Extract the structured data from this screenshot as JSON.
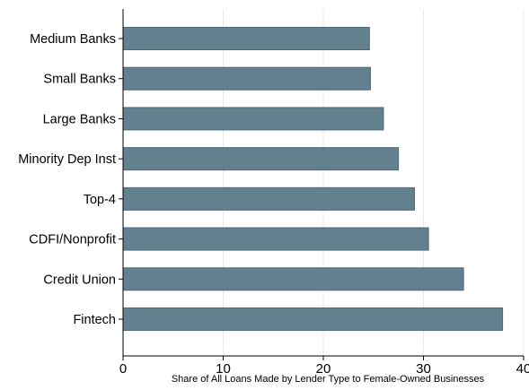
{
  "chart_data": {
    "type": "bar",
    "orientation": "horizontal",
    "categories": [
      "Medium Banks",
      "Small Banks",
      "Large Banks",
      "Minority Dep Inst",
      "Top-4",
      "CDFI/Nonprofit",
      "Credit Union",
      "Fintech"
    ],
    "values": [
      24.6,
      24.7,
      26.0,
      27.5,
      29.1,
      30.5,
      34.0,
      37.9
    ],
    "xlabel": "Share of All Loans Made by Lender Type to Female-Owned Businesses",
    "xlim": [
      0,
      40
    ],
    "xticks": [
      0,
      10,
      20,
      30,
      40
    ],
    "xtick_labels": [
      "0",
      "10",
      "20",
      "30",
      "40"
    ],
    "grid": true,
    "legend": "none",
    "colors": {
      "bar_fill": "#63808f",
      "bar_stroke": "#4e6877",
      "grid": "#e5eaee",
      "axis": "#000000"
    }
  }
}
